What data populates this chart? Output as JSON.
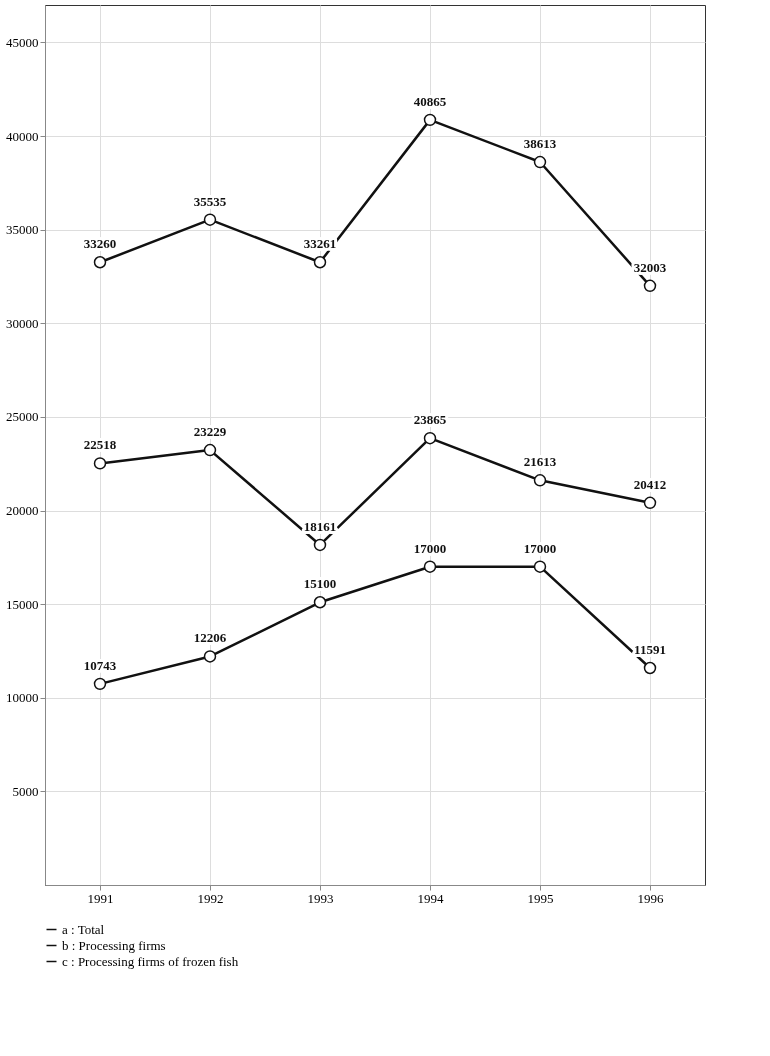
{
  "chart_data": {
    "type": "line",
    "categories": [
      "1991",
      "1992",
      "1993",
      "1994",
      "1995",
      "1996"
    ],
    "series": [
      {
        "name": "a : Total",
        "color": "#111111",
        "values": [
          33260,
          35535,
          33261,
          40865,
          38613,
          32003
        ]
      },
      {
        "name": "b : Processing firms",
        "color": "#111111",
        "values": [
          22518,
          23229,
          18161,
          23865,
          21613,
          20412
        ]
      },
      {
        "name": "c : Processing firms of frozen fish",
        "color": "#111111",
        "values": [
          10743,
          12206,
          15100,
          17000,
          17000,
          11591
        ]
      }
    ],
    "ylim": [
      0,
      47000
    ],
    "yticks": [
      5000,
      10000,
      15000,
      20000,
      25000,
      30000,
      35000,
      40000,
      45000
    ],
    "grid": true,
    "legend": "bottom",
    "marker": "circle",
    "line_style": "solid",
    "data_labels": true
  }
}
